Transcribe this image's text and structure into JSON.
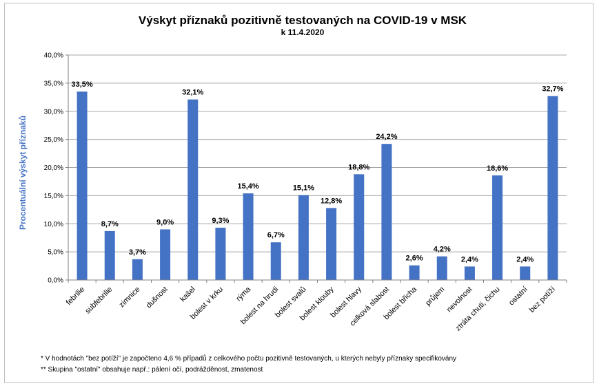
{
  "chart_data": {
    "type": "bar",
    "title": "Výskyt příznaků pozitivně testovaných na COVID-19 v MSK",
    "subtitle": "k 11.4.2020",
    "ylabel": "Procentuální výskyt příznaků",
    "xlabel": "",
    "ylim": [
      0,
      40
    ],
    "ytick_step": 5,
    "yticks": [
      "0,0%",
      "5,0%",
      "10,0%",
      "15,0%",
      "20,0%",
      "25,0%",
      "30,0%",
      "35,0%",
      "40,0%"
    ],
    "grid": true,
    "legend": "none",
    "bar_color": "#4472c4",
    "categories": [
      "febrilie",
      "subfebrilie",
      "zimnice",
      "dušnost",
      "kašel",
      "bolest v krku",
      "rýma",
      "bolest na hrudi",
      "bolest svalů",
      "bolest klouby",
      "bolest hlavy",
      "celková slabost",
      "bolest břicha",
      "průjem",
      "nevolnost",
      "ztráta chuti, čichu",
      "ostatní",
      "bez potíží"
    ],
    "values": [
      33.5,
      8.7,
      3.7,
      9.0,
      32.1,
      9.3,
      15.4,
      6.7,
      15.1,
      12.8,
      18.8,
      24.2,
      2.6,
      4.2,
      2.4,
      18.6,
      2.4,
      32.7
    ],
    "data_labels": [
      "33,5%",
      "8,7%",
      "3,7%",
      "9,0%",
      "32,1%",
      "9,3%",
      "15,4%",
      "6,7%",
      "15,1%",
      "12,8%",
      "18,8%",
      "24,2%",
      "2,6%",
      "4,2%",
      "2,4%",
      "18,6%",
      "2,4%",
      "32,7%"
    ]
  },
  "notes": [
    "* V hodnotách \"bez  potíží\" je započteno 4,6 % případů z celkového počtu pozitivně testovaných, u kterých nebyly příznaky specifikovány",
    "** Skupina \"ostatní\" obsahuje např.: pálení očí, podrážděnost, zmatenost"
  ]
}
